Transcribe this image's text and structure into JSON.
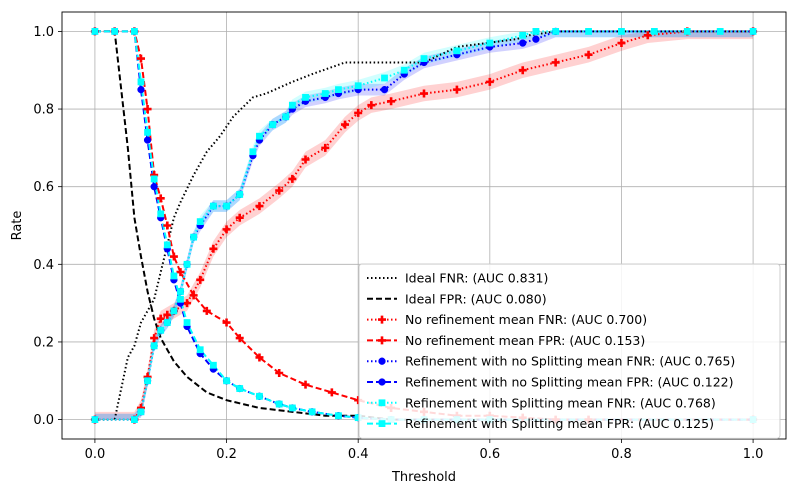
{
  "chart_data": {
    "type": "line",
    "title": "",
    "xlabel": "Threshold",
    "ylabel": "Rate",
    "xlim": [
      -0.05,
      1.05
    ],
    "ylim": [
      -0.05,
      1.05
    ],
    "xticks": [
      0.0,
      0.2,
      0.4,
      0.6,
      0.8,
      1.0
    ],
    "yticks": [
      0.0,
      0.2,
      0.4,
      0.6,
      0.8,
      1.0
    ],
    "xtick_labels": [
      "0.0",
      "0.2",
      "0.4",
      "0.6",
      "0.8",
      "1.0"
    ],
    "ytick_labels": [
      "0.0",
      "0.2",
      "0.4",
      "0.6",
      "0.8",
      "1.0"
    ],
    "grid": true,
    "legend_position": "lower-right",
    "series": [
      {
        "name": "Ideal FNR: (AUC 0.831)",
        "color": "#000000",
        "linestyle": "dotted",
        "marker": "none",
        "x": [
          0,
          0.03,
          0.04,
          0.05,
          0.06,
          0.07,
          0.09,
          0.1,
          0.12,
          0.13,
          0.15,
          0.17,
          0.19,
          0.21,
          0.24,
          0.26,
          0.3,
          0.33,
          0.38,
          0.42,
          0.5,
          0.55,
          0.64,
          0.66,
          0.7,
          0.78,
          1.0
        ],
        "y": [
          0,
          0,
          0.08,
          0.16,
          0.19,
          0.25,
          0.31,
          0.38,
          0.52,
          0.56,
          0.63,
          0.69,
          0.73,
          0.78,
          0.83,
          0.84,
          0.87,
          0.89,
          0.92,
          0.92,
          0.92,
          0.96,
          0.98,
          0.99,
          1.0,
          1.0,
          1.0
        ]
      },
      {
        "name": "Ideal FPR: (AUC 0.080)",
        "color": "#000000",
        "linestyle": "dashed",
        "marker": "none",
        "x": [
          0,
          0.03,
          0.04,
          0.05,
          0.06,
          0.07,
          0.08,
          0.09,
          0.1,
          0.12,
          0.14,
          0.17,
          0.2,
          0.25,
          0.3,
          0.35,
          0.4,
          0.45,
          0.5,
          0.6,
          0.7,
          1.0
        ],
        "y": [
          1.0,
          1.0,
          0.85,
          0.7,
          0.52,
          0.42,
          0.33,
          0.26,
          0.21,
          0.15,
          0.11,
          0.07,
          0.05,
          0.03,
          0.02,
          0.01,
          0.01,
          0,
          0,
          0,
          0,
          0
        ]
      },
      {
        "name": "No refinement mean FNR: (AUC 0.700)",
        "color": "#ff0000",
        "linestyle": "dotted",
        "marker": "plus",
        "band": true,
        "band_width": 0.02,
        "x": [
          0,
          0.06,
          0.07,
          0.08,
          0.09,
          0.1,
          0.11,
          0.12,
          0.14,
          0.16,
          0.18,
          0.2,
          0.22,
          0.25,
          0.28,
          0.3,
          0.32,
          0.35,
          0.38,
          0.4,
          0.42,
          0.45,
          0.5,
          0.55,
          0.6,
          0.65,
          0.7,
          0.75,
          0.8,
          0.84,
          0.9,
          1.0
        ],
        "y": [
          0,
          0,
          0.03,
          0.11,
          0.21,
          0.26,
          0.27,
          0.28,
          0.3,
          0.36,
          0.44,
          0.49,
          0.52,
          0.55,
          0.59,
          0.62,
          0.67,
          0.7,
          0.76,
          0.79,
          0.81,
          0.82,
          0.84,
          0.85,
          0.87,
          0.9,
          0.92,
          0.94,
          0.97,
          0.99,
          1.0,
          1.0
        ]
      },
      {
        "name": "No refinement mean FPR: (AUC 0.153)",
        "color": "#ff0000",
        "linestyle": "dashed",
        "marker": "plus",
        "band": false,
        "x": [
          0,
          0.03,
          0.06,
          0.07,
          0.08,
          0.09,
          0.1,
          0.11,
          0.12,
          0.13,
          0.15,
          0.17,
          0.2,
          0.22,
          0.25,
          0.28,
          0.32,
          0.36,
          0.4,
          0.45,
          0.5,
          0.55,
          0.6,
          0.65,
          0.7,
          0.75,
          1.0
        ],
        "y": [
          1.0,
          1.0,
          1.0,
          0.93,
          0.8,
          0.63,
          0.57,
          0.5,
          0.42,
          0.38,
          0.32,
          0.28,
          0.25,
          0.21,
          0.16,
          0.12,
          0.09,
          0.07,
          0.05,
          0.03,
          0.02,
          0.01,
          0.01,
          0.005,
          0,
          0,
          0
        ]
      },
      {
        "name": "Refinement with no Splitting mean FNR: (AUC 0.765)",
        "color": "#0000ff",
        "linestyle": "dotted",
        "marker": "circle",
        "band": true,
        "band_width": 0.015,
        "x": [
          0,
          0.06,
          0.07,
          0.08,
          0.09,
          0.1,
          0.11,
          0.12,
          0.13,
          0.14,
          0.15,
          0.16,
          0.18,
          0.2,
          0.22,
          0.24,
          0.25,
          0.27,
          0.29,
          0.3,
          0.32,
          0.35,
          0.37,
          0.4,
          0.44,
          0.47,
          0.5,
          0.55,
          0.6,
          0.65,
          0.67,
          0.7,
          1.0
        ],
        "y": [
          0,
          0,
          0.02,
          0.1,
          0.19,
          0.23,
          0.25,
          0.28,
          0.33,
          0.4,
          0.47,
          0.5,
          0.55,
          0.55,
          0.58,
          0.68,
          0.72,
          0.76,
          0.78,
          0.8,
          0.82,
          0.83,
          0.84,
          0.85,
          0.85,
          0.89,
          0.92,
          0.94,
          0.96,
          0.97,
          0.98,
          1.0,
          1.0
        ]
      },
      {
        "name": "Refinement with no Splitting mean FPR: (AUC 0.122)",
        "color": "#0000ff",
        "linestyle": "dashed",
        "marker": "circle",
        "band": false,
        "x": [
          0,
          0.03,
          0.06,
          0.07,
          0.08,
          0.09,
          0.1,
          0.11,
          0.12,
          0.13,
          0.14,
          0.16,
          0.18,
          0.2,
          0.22,
          0.25,
          0.28,
          0.3,
          0.33,
          0.37,
          0.4,
          0.45,
          0.5,
          0.55,
          0.6,
          1.0
        ],
        "y": [
          1.0,
          1.0,
          1.0,
          0.85,
          0.72,
          0.6,
          0.52,
          0.44,
          0.36,
          0.3,
          0.24,
          0.17,
          0.13,
          0.1,
          0.08,
          0.06,
          0.04,
          0.03,
          0.02,
          0.01,
          0.005,
          0,
          0,
          0,
          0,
          0
        ]
      },
      {
        "name": "Refinement with Splitting mean FNR: (AUC 0.768)",
        "color": "#00ffff",
        "linestyle": "dotted",
        "marker": "square",
        "band": true,
        "band_width": 0.015,
        "x": [
          0,
          0.06,
          0.07,
          0.08,
          0.09,
          0.1,
          0.11,
          0.12,
          0.13,
          0.14,
          0.15,
          0.16,
          0.18,
          0.2,
          0.22,
          0.24,
          0.25,
          0.27,
          0.29,
          0.3,
          0.32,
          0.35,
          0.37,
          0.4,
          0.44,
          0.47,
          0.5,
          0.55,
          0.6,
          0.65,
          0.67,
          0.7,
          0.75,
          0.8,
          0.85,
          0.9,
          0.95,
          1.0
        ],
        "y": [
          0,
          0,
          0.02,
          0.1,
          0.19,
          0.23,
          0.25,
          0.28,
          0.33,
          0.4,
          0.47,
          0.51,
          0.55,
          0.55,
          0.58,
          0.69,
          0.73,
          0.76,
          0.78,
          0.81,
          0.83,
          0.84,
          0.85,
          0.86,
          0.88,
          0.9,
          0.93,
          0.95,
          0.97,
          0.99,
          1.0,
          1.0,
          1.0,
          1.0,
          1.0,
          1.0,
          1.0,
          1.0
        ]
      },
      {
        "name": "Refinement with Splitting mean FPR: (AUC 0.125)",
        "color": "#00ffff",
        "linestyle": "dashed",
        "marker": "square",
        "band": false,
        "x": [
          0,
          0.03,
          0.06,
          0.07,
          0.08,
          0.09,
          0.1,
          0.11,
          0.12,
          0.13,
          0.14,
          0.16,
          0.18,
          0.2,
          0.22,
          0.25,
          0.28,
          0.3,
          0.33,
          0.37,
          0.4,
          0.45,
          0.5,
          0.55,
          0.6,
          1.0
        ],
        "y": [
          1.0,
          1.0,
          1.0,
          0.87,
          0.74,
          0.62,
          0.53,
          0.45,
          0.37,
          0.31,
          0.25,
          0.18,
          0.14,
          0.1,
          0.08,
          0.06,
          0.04,
          0.03,
          0.02,
          0.01,
          0.005,
          0,
          0,
          0,
          0,
          0
        ]
      }
    ]
  }
}
